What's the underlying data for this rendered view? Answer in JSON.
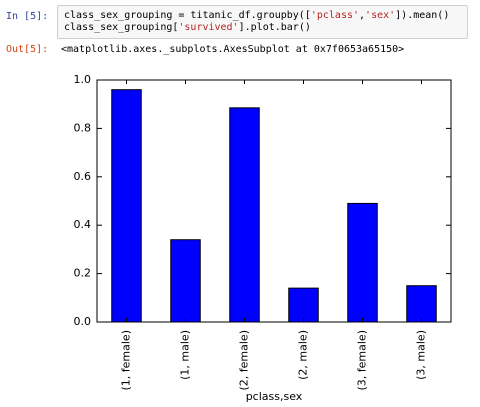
{
  "cell": {
    "in_prompt": "In [5]:",
    "code": [
      [
        "class_sex_grouping = titanic_df.groupby([",
        "'pclass'",
        ",",
        "'sex'",
        "]).mean()"
      ],
      [
        "class_sex_grouping[",
        "'survived'",
        "].plot.bar()"
      ]
    ],
    "out_prompt": "Out[5]:",
    "out_text": "<matplotlib.axes._subplots.AxesSubplot at 0x7f0653a65150>",
    "string_color": "#ba2121"
  },
  "chart_data": {
    "type": "bar",
    "xlabel": "pclass,sex",
    "categories": [
      "(1, female)",
      "(1, male)",
      "(2, female)",
      "(2, male)",
      "(3, female)",
      "(3, male)"
    ],
    "values": [
      0.96,
      0.34,
      0.885,
      0.14,
      0.49,
      0.15
    ],
    "color": "#0000ff",
    "ylim": [
      0,
      1
    ],
    "yticks": [
      {
        "value": 0,
        "label": "0.0"
      },
      {
        "value": 0.2,
        "label": "0.2"
      },
      {
        "value": 0.4,
        "label": "0.4"
      },
      {
        "value": 0.6,
        "label": "0.6"
      },
      {
        "value": 0.8,
        "label": "0.8"
      },
      {
        "value": 1,
        "label": "1.0"
      }
    ],
    "grid": false
  }
}
